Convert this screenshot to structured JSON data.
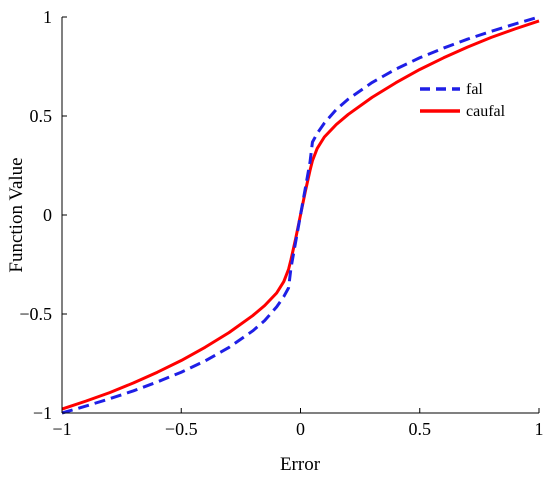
{
  "chart_data": {
    "type": "line",
    "title": "",
    "xlabel": "Error",
    "ylabel": "Function Value",
    "xlim": [
      -1,
      1
    ],
    "ylim": [
      -1,
      1
    ],
    "xticks": [
      -1,
      -0.5,
      0,
      0.5,
      1
    ],
    "yticks": [
      -1,
      -0.5,
      0,
      0.5,
      1
    ],
    "xtick_labels": [
      "−1",
      "−0.5",
      "0",
      "0.5",
      "1"
    ],
    "ytick_labels": [
      "−1",
      "−0.5",
      "0",
      "0.5",
      "1"
    ],
    "grid": false,
    "legend_position": "top-right",
    "series": [
      {
        "name": "fal",
        "color": "#1f1fe6",
        "style": "dashed",
        "x": [
          -1,
          -0.9,
          -0.8,
          -0.7,
          -0.6,
          -0.5,
          -0.4,
          -0.3,
          -0.2,
          -0.15,
          -0.1,
          -0.07,
          -0.05,
          -0.04,
          -0.02,
          0,
          0.02,
          0.04,
          0.05,
          0.07,
          0.1,
          0.15,
          0.2,
          0.3,
          0.4,
          0.5,
          0.6,
          0.7,
          0.8,
          0.9,
          1
        ],
        "y": [
          -1,
          -0.965,
          -0.928,
          -0.888,
          -0.843,
          -0.794,
          -0.737,
          -0.669,
          -0.585,
          -0.533,
          -0.464,
          -0.412,
          -0.368,
          -0.268,
          -0.134,
          0,
          0.134,
          0.268,
          0.368,
          0.412,
          0.464,
          0.533,
          0.585,
          0.669,
          0.737,
          0.794,
          0.843,
          0.888,
          0.928,
          0.965,
          1
        ]
      },
      {
        "name": "caufal",
        "color": "#ff0000",
        "style": "solid",
        "x": [
          -1,
          -0.9,
          -0.8,
          -0.7,
          -0.6,
          -0.5,
          -0.4,
          -0.3,
          -0.2,
          -0.15,
          -0.1,
          -0.07,
          -0.05,
          -0.04,
          -0.02,
          0,
          0.02,
          0.04,
          0.05,
          0.07,
          0.1,
          0.15,
          0.2,
          0.3,
          0.4,
          0.5,
          0.6,
          0.7,
          0.8,
          0.9,
          1
        ],
        "y": [
          -0.98,
          -0.94,
          -0.897,
          -0.848,
          -0.794,
          -0.735,
          -0.668,
          -0.594,
          -0.508,
          -0.457,
          -0.394,
          -0.336,
          -0.274,
          -0.226,
          -0.118,
          0,
          0.118,
          0.226,
          0.274,
          0.336,
          0.394,
          0.457,
          0.508,
          0.594,
          0.668,
          0.735,
          0.794,
          0.848,
          0.897,
          0.94,
          0.98
        ]
      }
    ]
  }
}
